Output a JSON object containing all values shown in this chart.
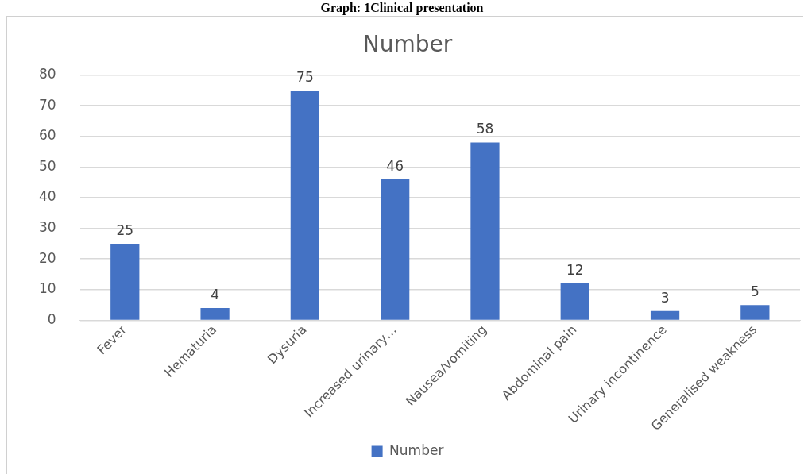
{
  "chart_data": {
    "type": "bar",
    "title": "Number",
    "annotations": [
      "Graph: 1Clinical presentation"
    ],
    "categories": [
      "Fever",
      "Hematuria",
      "Dysuria",
      "Increased urinary…",
      "Nausea/vomiting",
      "Abdominal pain",
      "Urinary incontinence",
      "Generalised weakness"
    ],
    "series": [
      {
        "name": "Number",
        "color": "#4472c4",
        "values": [
          25,
          4,
          75,
          46,
          58,
          12,
          3,
          5
        ]
      }
    ],
    "ylim": [
      0,
      80
    ],
    "yticks": [
      0,
      10,
      20,
      30,
      40,
      50,
      60,
      70,
      80
    ],
    "grid": "y",
    "legend": "bottom",
    "data_labels": true
  }
}
